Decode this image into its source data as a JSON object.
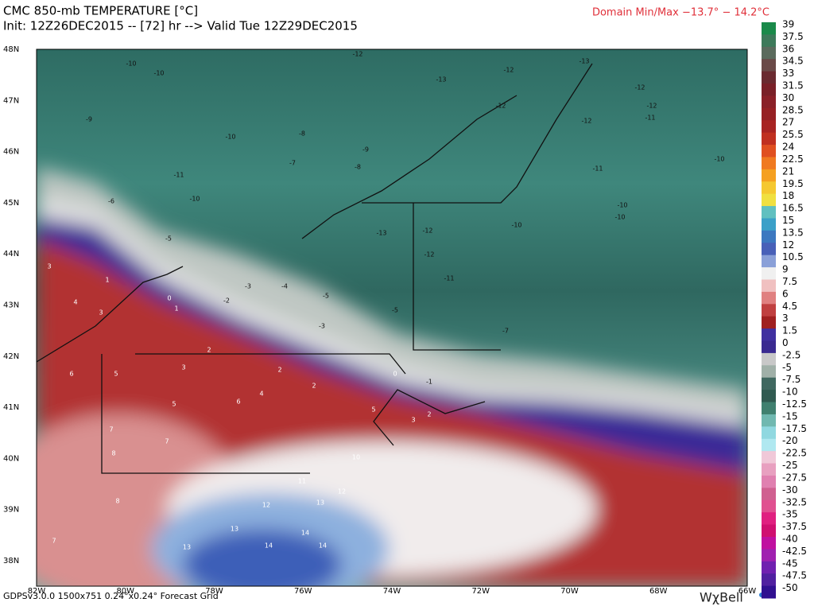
{
  "header": {
    "title": "CMC 850-mb TEMPERATURE [°C]",
    "subtitle": "Init: 12Z26DEC2015 -- [72] hr --> Valid Tue 12Z29DEC2015",
    "domain": "Domain Min/Max −13.7° −  14.2°C"
  },
  "map": {
    "lat_labels": [
      "48N",
      "47N",
      "46N",
      "45N",
      "44N",
      "43N",
      "42N",
      "41N",
      "40N",
      "39N",
      "38N"
    ],
    "lon_labels": [
      "82W",
      "80W",
      "78W",
      "76W",
      "74W",
      "72W",
      "70W",
      "68W",
      "66W"
    ],
    "point_labels": [
      -12,
      -13,
      -12,
      -12,
      -13,
      -12,
      -12,
      -12,
      -11,
      -10,
      -10,
      -10,
      -9,
      -10,
      -11,
      -10,
      -7,
      -8,
      -8,
      -9,
      -6,
      -5,
      -13,
      -12,
      -12,
      -11,
      -10,
      -10,
      -10,
      -11,
      -3,
      -2,
      -4,
      -5,
      -3,
      -5,
      -7,
      0,
      1,
      3,
      4,
      3,
      1,
      2,
      3,
      5,
      6,
      5,
      6,
      4,
      2,
      2,
      0,
      -1,
      2,
      3,
      5,
      7,
      8,
      7,
      8,
      7,
      12,
      13,
      14,
      13,
      13,
      14,
      14,
      12,
      10,
      11
    ]
  },
  "colorbar": {
    "labels": [
      "39",
      "37.5",
      "36",
      "34.5",
      "33",
      "31.5",
      "30",
      "28.5",
      "27",
      "25.5",
      "24",
      "22.5",
      "21",
      "19.5",
      "18",
      "16.5",
      "15",
      "13.5",
      "12",
      "10.5",
      "9",
      "7.5",
      "6",
      "4.5",
      "3",
      "1.5",
      "0",
      "-2.5",
      "-5",
      "-7.5",
      "-10",
      "-12.5",
      "-15",
      "-17.5",
      "-20",
      "-22.5",
      "-25",
      "-27.5",
      "-30",
      "-32.5",
      "-35",
      "-37.5",
      "-40",
      "-42.5",
      "-45",
      "-47.5",
      "-50"
    ]
  },
  "footer": {
    "grid": "GDPSv3.0.0 1500x751 0.24°x0.24° Forecast Grid",
    "logo": "WχBell"
  }
}
